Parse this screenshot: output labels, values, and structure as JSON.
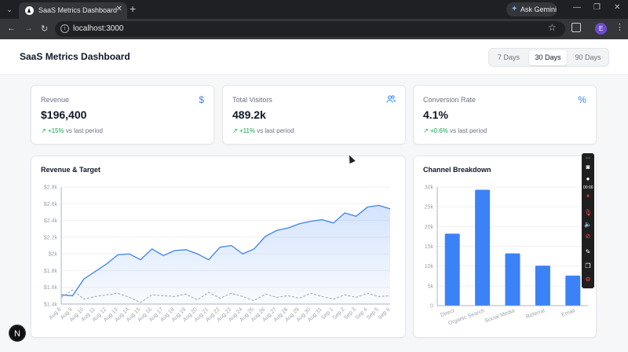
{
  "browser": {
    "tab_title": "SaaS Metrics Dashboard",
    "tab_close": "✕",
    "new_tab": "+",
    "gemini_label": "Ask Gemini",
    "url": "localhost:3000",
    "profile_initial": "E"
  },
  "header": {
    "title": "SaaS Metrics Dashboard",
    "ranges": [
      "7 Days",
      "30 Days",
      "90 Days"
    ],
    "active_range": "30 Days"
  },
  "kpis": [
    {
      "label": "Revenue",
      "value": "$196,400",
      "delta": "+15%",
      "suffix": "vs last period",
      "icon": "dollar-icon"
    },
    {
      "label": "Total Visitors",
      "value": "489.2k",
      "delta": "+11%",
      "suffix": "vs last period",
      "icon": "users-icon"
    },
    {
      "label": "Conversion Rate",
      "value": "4.1%",
      "delta": "+0.6%",
      "suffix": "vs last period",
      "icon": "percent-icon"
    }
  ],
  "recorder": {
    "timer": "00:00"
  },
  "n_badge": "N",
  "chart_data": [
    {
      "type": "area",
      "title": "Revenue & Target",
      "x": [
        "Aug 8",
        "Aug 9",
        "Aug 10",
        "Aug 11",
        "Aug 12",
        "Aug 13",
        "Aug 14",
        "Aug 15",
        "Aug 16",
        "Aug 17",
        "Aug 18",
        "Aug 19",
        "Aug 20",
        "Aug 21",
        "Aug 22",
        "Aug 23",
        "Aug 24",
        "Aug 25",
        "Aug 26",
        "Aug 27",
        "Aug 28",
        "Aug 29",
        "Aug 30",
        "Aug 31",
        "Sep 1",
        "Sep 2",
        "Sep 3",
        "Sep 4",
        "Sep 5",
        "Sep 6"
      ],
      "yticks": [
        "$1.4k",
        "$1.6k",
        "$1.8k",
        "$2k",
        "$2.2k",
        "$2.4k",
        "$2.6k",
        "$2.8k"
      ],
      "ylim": [
        1400,
        2800
      ],
      "series": [
        {
          "values": [
            1510,
            1500,
            1700,
            1790,
            1880,
            1990,
            2000,
            1930,
            2060,
            1980,
            2040,
            2050,
            2000,
            1930,
            2080,
            2100,
            2000,
            2060,
            2210,
            2280,
            2310,
            2360,
            2390,
            2410,
            2370,
            2490,
            2450,
            2560,
            2580,
            2540
          ],
          "color": "#3b82f6",
          "style": "solid-area"
        },
        {
          "values": [
            1480,
            1570,
            1460,
            1490,
            1510,
            1530,
            1480,
            1420,
            1510,
            1500,
            1490,
            1520,
            1450,
            1540,
            1470,
            1530,
            1490,
            1440,
            1520,
            1480,
            1500,
            1470,
            1530,
            1490,
            1460,
            1510,
            1480,
            1530,
            1490,
            1500
          ],
          "color": "#9ca3af",
          "style": "dashed"
        }
      ]
    },
    {
      "type": "bar",
      "title": "Channel Breakdown",
      "categories": [
        "Direct",
        "Organic Search",
        "Social Media",
        "Referral",
        "Email"
      ],
      "values": [
        18200,
        29300,
        13200,
        10100,
        7600
      ],
      "yticks": [
        "0",
        "5k",
        "10k",
        "15k",
        "20k",
        "25k",
        "30k"
      ],
      "ylim": [
        0,
        30000
      ],
      "color": "#3b82f6"
    }
  ]
}
